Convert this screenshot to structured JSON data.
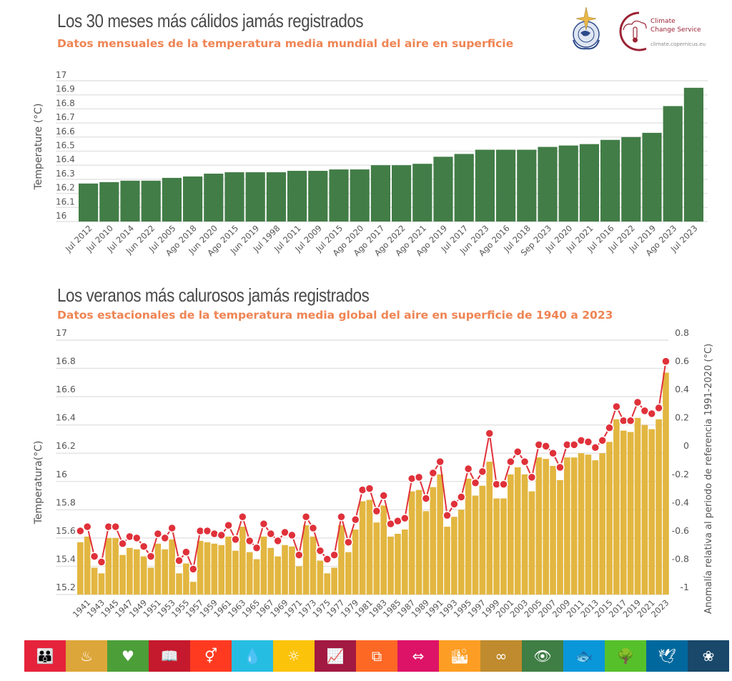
{
  "header": {
    "title1": "Los 30 meses más cálidos jamás registrados",
    "subtitle1": "Datos mensuales de la temperatura media mundial del aire en superficie",
    "title2": "Los veranos más calurosos jamás registrados",
    "subtitle2": "Datos estacionales de la temperatura media global del aire en superficie de 1940 a 2023"
  },
  "logos": {
    "wmo": "wmo-emblem-icon",
    "c3s_line1": "Climate",
    "c3s_line2": "Change Service",
    "c3s_url": "climate.copernicus.eu"
  },
  "colors": {
    "green_bar": "#427d47",
    "gold_bar": "#e2b640",
    "red_line": "#e0313a",
    "title": "#4a4a4a",
    "subtitle": "#ef8453"
  },
  "chart_data": [
    {
      "type": "bar",
      "title": "Los 30 meses más cálidos jamás registrados",
      "subtitle": "Datos mensuales de la temperatura media mundial del aire en superficie",
      "xlabel": "",
      "ylabel": "Temperature (°C)",
      "ylim": [
        16,
        17
      ],
      "yticks": [
        "16",
        "16.1",
        "16.2",
        "16.3",
        "16.4",
        "16.5",
        "16.6",
        "16.7",
        "16.8",
        "16.9",
        "17"
      ],
      "grid": true,
      "categories": [
        "Jul 2012",
        "Jul 2010",
        "Jul 2014",
        "Jun 2022",
        "Jul 2005",
        "Ago 2018",
        "Jun 2020",
        "Ago 2015",
        "Jun 2019",
        "Jul 1998",
        "Jul 2011",
        "Jul 2009",
        "Jul 2015",
        "Ago 2020",
        "Ago 2017",
        "Ago 2022",
        "Ago 2021",
        "Ago 2019",
        "Jul 2017",
        "Jun 2023",
        "Ago 2016",
        "Jul 2018",
        "Sep 2023",
        "Jul 2020",
        "Jul 2021",
        "Jul 2016",
        "Jul 2022",
        "Jul 2019",
        "Ago 2023",
        "Jul 2023"
      ],
      "values": [
        16.27,
        16.28,
        16.29,
        16.29,
        16.31,
        16.32,
        16.34,
        16.35,
        16.35,
        16.35,
        16.36,
        16.36,
        16.37,
        16.37,
        16.4,
        16.4,
        16.41,
        16.46,
        16.48,
        16.51,
        16.51,
        16.51,
        16.53,
        16.54,
        16.55,
        16.58,
        16.6,
        16.63,
        16.82,
        16.95
      ]
    },
    {
      "type": "bar+line",
      "title": "Los veranos más calurosos jamás registrados",
      "subtitle": "Datos estacionales de la temperatura media global del aire en superficie de 1940 a 2023",
      "xlabel": "",
      "ylabel": "Temperatura(°C)",
      "ylabel_right": "Anomalía relativa al periodo de referencia 1991-2020 (°C)",
      "ylim": [
        15.2,
        17
      ],
      "ylim_right": [
        -1,
        0.8
      ],
      "yticks": [
        "15.2",
        "15.4",
        "15.6",
        "15.8",
        "16",
        "16.2",
        "16.4",
        "16.6",
        "16.8",
        "17"
      ],
      "yticks_right": [
        "-1",
        "-0.8",
        "-0.6",
        "-0.4",
        "-0.2",
        "0",
        "0.2",
        "0.4",
        "0.6",
        "0.8"
      ],
      "grid": true,
      "x": [
        1940,
        1941,
        1942,
        1943,
        1944,
        1945,
        1946,
        1947,
        1948,
        1949,
        1950,
        1951,
        1952,
        1953,
        1954,
        1955,
        1956,
        1957,
        1958,
        1959,
        1960,
        1961,
        1962,
        1963,
        1964,
        1965,
        1966,
        1967,
        1968,
        1969,
        1970,
        1971,
        1972,
        1973,
        1974,
        1975,
        1976,
        1977,
        1978,
        1979,
        1980,
        1981,
        1982,
        1983,
        1984,
        1985,
        1986,
        1987,
        1988,
        1989,
        1990,
        1991,
        1992,
        1993,
        1994,
        1995,
        1996,
        1997,
        1998,
        1999,
        2000,
        2001,
        2002,
        2003,
        2004,
        2005,
        2006,
        2007,
        2008,
        2009,
        2010,
        2011,
        2012,
        2013,
        2014,
        2015,
        2016,
        2017,
        2018,
        2019,
        2020,
        2021,
        2022,
        2023
      ],
      "xtick_labels": [
        "1941",
        "1943",
        "1945",
        "1947",
        "1949",
        "1951",
        "1953",
        "1955",
        "1957",
        "1959",
        "1961",
        "1963",
        "1965",
        "1967",
        "1969",
        "1971",
        "1973",
        "1975",
        "1977",
        "1979",
        "1981",
        "1983",
        "1985",
        "1987",
        "1989",
        "1991",
        "1993",
        "1995",
        "1997",
        "1999",
        "2001",
        "2003",
        "2005",
        "2007",
        "2009",
        "2011",
        "2013",
        "2015",
        "2017",
        "2019",
        "2021",
        "2023"
      ],
      "series": [
        {
          "name": "Temperatura (°C)",
          "type": "bar",
          "values": [
            15.57,
            15.61,
            15.39,
            15.35,
            15.6,
            15.6,
            15.48,
            15.53,
            15.52,
            15.47,
            15.39,
            15.56,
            15.52,
            15.59,
            15.35,
            15.42,
            15.29,
            15.58,
            15.57,
            15.56,
            15.55,
            15.61,
            15.51,
            15.68,
            15.5,
            15.45,
            15.61,
            15.53,
            15.47,
            15.55,
            15.54,
            15.4,
            15.69,
            15.61,
            15.44,
            15.35,
            15.39,
            15.69,
            15.5,
            15.66,
            15.86,
            15.87,
            15.71,
            15.83,
            15.61,
            15.63,
            15.66,
            15.93,
            15.94,
            15.79,
            15.96,
            16.05,
            15.68,
            15.75,
            15.8,
            16.02,
            15.9,
            15.97,
            16.14,
            15.88,
            15.88,
            16.05,
            16.1,
            16.05,
            15.93,
            16.17,
            16.16,
            16.11,
            16.01,
            16.17,
            16.17,
            16.2,
            16.19,
            16.15,
            16.2,
            16.28,
            16.44,
            16.36,
            16.35,
            16.45,
            16.4,
            16.37,
            16.44,
            16.77
          ]
        },
        {
          "name": "Anomalía (°C)",
          "type": "line",
          "values": [
            -0.55,
            -0.52,
            -0.73,
            -0.77,
            -0.52,
            -0.52,
            -0.64,
            -0.59,
            -0.6,
            -0.66,
            -0.73,
            -0.57,
            -0.6,
            -0.53,
            -0.76,
            -0.7,
            -0.82,
            -0.55,
            -0.55,
            -0.57,
            -0.58,
            -0.51,
            -0.61,
            -0.45,
            -0.62,
            -0.67,
            -0.5,
            -0.57,
            -0.62,
            -0.56,
            -0.58,
            -0.72,
            -0.45,
            -0.53,
            -0.69,
            -0.75,
            -0.72,
            -0.45,
            -0.63,
            -0.47,
            -0.26,
            -0.25,
            -0.41,
            -0.3,
            -0.5,
            -0.48,
            -0.46,
            -0.18,
            -0.17,
            -0.32,
            -0.14,
            -0.06,
            -0.44,
            -0.36,
            -0.31,
            -0.11,
            -0.21,
            -0.13,
            0.14,
            -0.22,
            -0.22,
            -0.06,
            0.01,
            -0.06,
            -0.17,
            0.06,
            0.05,
            0.0,
            -0.1,
            0.06,
            0.06,
            0.09,
            0.08,
            0.04,
            0.09,
            0.18,
            0.33,
            0.23,
            0.23,
            0.36,
            0.3,
            0.28,
            0.32,
            0.65
          ]
        }
      ]
    }
  ],
  "sdg_strip": [
    {
      "icon": "people-icon",
      "color": "#e5243b",
      "glyph": "👪"
    },
    {
      "icon": "bowl-icon",
      "color": "#dda63a",
      "glyph": "♨"
    },
    {
      "icon": "heartbeat-icon",
      "color": "#4c9f38",
      "glyph": "♥"
    },
    {
      "icon": "book-icon",
      "color": "#c5192d",
      "glyph": "📖"
    },
    {
      "icon": "gender-icon",
      "color": "#ff3a21",
      "glyph": "⚥"
    },
    {
      "icon": "water-icon",
      "color": "#26bde2",
      "glyph": "💧"
    },
    {
      "icon": "sun-icon",
      "color": "#fcc30b",
      "glyph": "☼"
    },
    {
      "icon": "growth-chart-icon",
      "color": "#a21942",
      "glyph": "📈"
    },
    {
      "icon": "cubes-icon",
      "color": "#fd6925",
      "glyph": "⧉"
    },
    {
      "icon": "equality-icon",
      "color": "#dd1367",
      "glyph": "⇔"
    },
    {
      "icon": "city-icon",
      "color": "#fd9d24",
      "glyph": "🏙"
    },
    {
      "icon": "infinity-icon",
      "color": "#bf8b2e",
      "glyph": "∞"
    },
    {
      "icon": "eye-globe-icon",
      "color": "#3f7e44",
      "glyph": "👁"
    },
    {
      "icon": "fish-icon",
      "color": "#0a97d9",
      "glyph": "🐟"
    },
    {
      "icon": "tree-icon",
      "color": "#56c02b",
      "glyph": "🌳"
    },
    {
      "icon": "dove-icon",
      "color": "#00689d",
      "glyph": "🕊"
    },
    {
      "icon": "flower-ring-icon",
      "color": "#19486a",
      "glyph": "❀"
    }
  ]
}
